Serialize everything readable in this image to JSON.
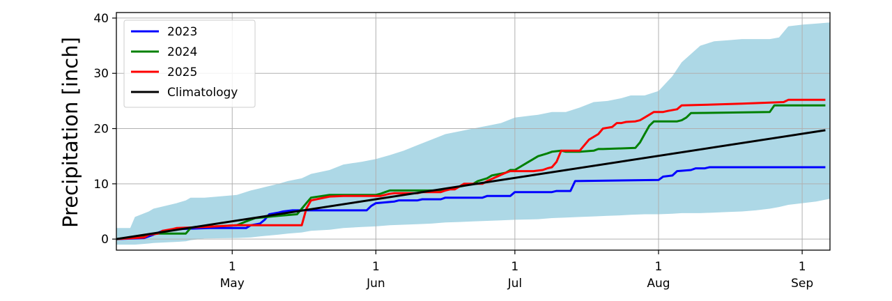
{
  "chart_data": {
    "type": "line",
    "title": "",
    "xlabel": "",
    "ylabel": "Precipitation [inch]",
    "xlim": [
      "2025-04-06",
      "2025-09-07"
    ],
    "ylim": [
      -2,
      41
    ],
    "yticks": [
      0,
      10,
      20,
      30,
      40
    ],
    "xticks": [
      {
        "date": "2025-05-01",
        "day": "1",
        "month": "May"
      },
      {
        "date": "2025-06-01",
        "day": "1",
        "month": "Jun"
      },
      {
        "date": "2025-07-01",
        "day": "1",
        "month": "Jul"
      },
      {
        "date": "2025-08-01",
        "day": "1",
        "month": "Aug"
      },
      {
        "date": "2025-09-01",
        "day": "1",
        "month": "Sep"
      }
    ],
    "grid": true,
    "legend_position": "top-left",
    "band": {
      "color": "#add8e6",
      "x": [
        "2025-04-06",
        "2025-04-09",
        "2025-04-10",
        "2025-04-13",
        "2025-04-14",
        "2025-04-19",
        "2025-04-21",
        "2025-04-22",
        "2025-04-24",
        "2025-04-25",
        "2025-05-02",
        "2025-05-05",
        "2025-05-07",
        "2025-05-11",
        "2025-05-13",
        "2025-05-16",
        "2025-05-18",
        "2025-05-22",
        "2025-05-25",
        "2025-05-29",
        "2025-06-01",
        "2025-06-04",
        "2025-06-07",
        "2025-06-10",
        "2025-06-13",
        "2025-06-16",
        "2025-06-19",
        "2025-06-22",
        "2025-06-25",
        "2025-06-28",
        "2025-07-01",
        "2025-07-06",
        "2025-07-09",
        "2025-07-12",
        "2025-07-15",
        "2025-07-18",
        "2025-07-21",
        "2025-07-24",
        "2025-07-26",
        "2025-07-29",
        "2025-08-01",
        "2025-08-04",
        "2025-08-06",
        "2025-08-10",
        "2025-08-13",
        "2025-08-16",
        "2025-08-19",
        "2025-08-22",
        "2025-08-25",
        "2025-08-27",
        "2025-08-29",
        "2025-09-01",
        "2025-09-04",
        "2025-09-07"
      ],
      "upper": [
        2.0,
        2.0,
        4.0,
        5.0,
        5.5,
        6.5,
        7.0,
        7.5,
        7.5,
        7.5,
        8.0,
        8.8,
        9.2,
        10.0,
        10.5,
        11.0,
        11.8,
        12.5,
        13.5,
        14.0,
        14.5,
        15.2,
        16.0,
        17.0,
        18.0,
        19.0,
        19.5,
        20.0,
        20.5,
        21.0,
        22.0,
        22.5,
        23.0,
        23.0,
        23.8,
        24.8,
        25.0,
        25.5,
        26.0,
        26.0,
        26.8,
        29.5,
        32.0,
        35.0,
        35.8,
        36.0,
        36.2,
        36.2,
        36.2,
        36.5,
        38.5,
        38.8,
        39.0,
        39.2
      ],
      "lower": [
        -1.0,
        -1.0,
        -1.0,
        -0.8,
        -0.7,
        -0.5,
        -0.4,
        -0.2,
        0.0,
        0.1,
        0.2,
        0.3,
        0.5,
        0.8,
        1.0,
        1.2,
        1.5,
        1.7,
        2.0,
        2.2,
        2.3,
        2.5,
        2.6,
        2.7,
        2.8,
        3.0,
        3.1,
        3.2,
        3.3,
        3.4,
        3.5,
        3.6,
        3.8,
        3.9,
        4.0,
        4.1,
        4.2,
        4.3,
        4.4,
        4.5,
        4.5,
        4.6,
        4.7,
        4.7,
        4.8,
        4.9,
        5.0,
        5.2,
        5.5,
        5.8,
        6.2,
        6.5,
        6.8,
        7.3
      ]
    },
    "series": [
      {
        "name": "2023",
        "color": "#0000ff",
        "x": [
          "2025-04-06",
          "2025-04-12",
          "2025-04-14",
          "2025-04-16",
          "2025-04-19",
          "2025-04-26",
          "2025-05-04",
          "2025-05-05",
          "2025-05-07",
          "2025-05-08",
          "2025-05-09",
          "2025-05-11",
          "2025-05-12",
          "2025-05-14",
          "2025-05-18",
          "2025-05-25",
          "2025-05-30",
          "2025-05-31",
          "2025-06-01",
          "2025-06-05",
          "2025-06-06",
          "2025-06-10",
          "2025-06-11",
          "2025-06-15",
          "2025-06-16",
          "2025-06-24",
          "2025-06-25",
          "2025-06-30",
          "2025-07-01",
          "2025-07-09",
          "2025-07-10",
          "2025-07-13",
          "2025-07-14",
          "2025-08-01",
          "2025-08-02",
          "2025-08-04",
          "2025-08-05",
          "2025-08-08",
          "2025-08-09",
          "2025-08-11",
          "2025-08-12",
          "2025-09-06"
        ],
        "values": [
          0.0,
          0.2,
          0.8,
          1.5,
          1.8,
          2.0,
          2.0,
          2.5,
          2.8,
          3.5,
          4.5,
          4.8,
          5.0,
          5.2,
          5.2,
          5.2,
          5.2,
          6.0,
          6.5,
          6.8,
          7.0,
          7.0,
          7.2,
          7.2,
          7.5,
          7.5,
          7.8,
          7.8,
          8.5,
          8.5,
          8.7,
          8.7,
          10.5,
          10.7,
          11.3,
          11.5,
          12.3,
          12.5,
          12.8,
          12.8,
          13.0,
          13.0
        ]
      },
      {
        "name": "2024",
        "color": "#008000",
        "x": [
          "2025-04-06",
          "2025-04-11",
          "2025-04-13",
          "2025-04-15",
          "2025-04-16",
          "2025-04-21",
          "2025-04-22",
          "2025-04-23",
          "2025-04-25",
          "2025-05-02",
          "2025-05-04",
          "2025-05-05",
          "2025-05-06",
          "2025-05-11",
          "2025-05-15",
          "2025-05-16",
          "2025-05-17",
          "2025-05-18",
          "2025-05-22",
          "2025-05-24",
          "2025-06-01",
          "2025-06-02",
          "2025-06-03",
          "2025-06-04",
          "2025-06-10",
          "2025-06-15",
          "2025-06-22",
          "2025-06-23",
          "2025-06-25",
          "2025-06-26",
          "2025-06-29",
          "2025-06-30",
          "2025-07-01",
          "2025-07-02",
          "2025-07-04",
          "2025-07-05",
          "2025-07-06",
          "2025-07-08",
          "2025-07-09",
          "2025-07-11",
          "2025-07-12",
          "2025-07-15",
          "2025-07-18",
          "2025-07-19",
          "2025-07-20",
          "2025-07-27",
          "2025-07-28",
          "2025-07-29",
          "2025-07-30",
          "2025-07-31",
          "2025-08-05",
          "2025-08-06",
          "2025-08-07",
          "2025-08-08",
          "2025-08-25",
          "2025-08-26",
          "2025-09-06"
        ],
        "values": [
          0.0,
          0.5,
          0.8,
          1.0,
          1.0,
          1.0,
          2.0,
          2.2,
          2.2,
          2.5,
          3.2,
          3.5,
          3.8,
          4.2,
          4.5,
          5.5,
          6.5,
          7.5,
          8.0,
          8.0,
          8.0,
          8.2,
          8.5,
          8.8,
          8.8,
          8.8,
          10.0,
          10.5,
          11.0,
          11.5,
          12.0,
          12.5,
          12.5,
          13.0,
          14.0,
          14.5,
          15.0,
          15.5,
          15.8,
          16.0,
          15.8,
          15.8,
          16.0,
          16.3,
          16.3,
          16.5,
          17.5,
          19.0,
          20.5,
          21.3,
          21.3,
          21.5,
          22.0,
          22.8,
          23.0,
          24.2,
          24.2
        ]
      },
      {
        "name": "2025",
        "color": "#ff0000",
        "x": [
          "2025-04-06",
          "2025-04-12",
          "2025-04-13",
          "2025-04-15",
          "2025-04-16",
          "2025-04-18",
          "2025-04-19",
          "2025-04-25",
          "2025-05-02",
          "2025-05-16",
          "2025-05-17",
          "2025-05-18",
          "2025-05-22",
          "2025-05-25",
          "2025-06-02",
          "2025-06-03",
          "2025-06-04",
          "2025-06-05",
          "2025-06-10",
          "2025-06-11",
          "2025-06-15",
          "2025-06-16",
          "2025-06-17",
          "2025-06-18",
          "2025-06-19",
          "2025-06-20",
          "2025-06-24",
          "2025-06-25",
          "2025-06-29",
          "2025-06-30",
          "2025-07-04",
          "2025-07-05",
          "2025-07-07",
          "2025-07-08",
          "2025-07-09",
          "2025-07-10",
          "2025-07-11",
          "2025-07-15",
          "2025-07-16",
          "2025-07-17",
          "2025-07-19",
          "2025-07-20",
          "2025-07-22",
          "2025-07-23",
          "2025-07-24",
          "2025-07-25",
          "2025-07-27",
          "2025-07-28",
          "2025-07-29",
          "2025-07-31",
          "2025-08-02",
          "2025-08-03",
          "2025-08-05",
          "2025-08-06",
          "2025-08-11",
          "2025-08-19",
          "2025-08-28",
          "2025-08-29",
          "2025-09-06"
        ],
        "values": [
          0.0,
          0.3,
          0.8,
          1.0,
          1.5,
          1.8,
          2.0,
          2.2,
          2.5,
          2.5,
          5.5,
          7.0,
          7.7,
          7.8,
          7.8,
          8.0,
          8.2,
          8.3,
          8.3,
          8.5,
          8.5,
          8.8,
          9.0,
          9.0,
          9.5,
          10.0,
          10.0,
          10.5,
          12.0,
          12.3,
          12.3,
          12.3,
          12.5,
          12.8,
          13.0,
          14.0,
          16.0,
          16.0,
          17.0,
          18.0,
          19.0,
          20.0,
          20.3,
          21.0,
          21.0,
          21.2,
          21.3,
          21.5,
          22.0,
          23.0,
          23.0,
          23.2,
          23.5,
          24.2,
          24.3,
          24.5,
          24.8,
          25.2,
          25.2
        ]
      },
      {
        "name": "Climatology",
        "color": "#000000",
        "x": [
          "2025-04-06",
          "2025-09-06"
        ],
        "values": [
          0.0,
          19.7
        ]
      }
    ]
  }
}
